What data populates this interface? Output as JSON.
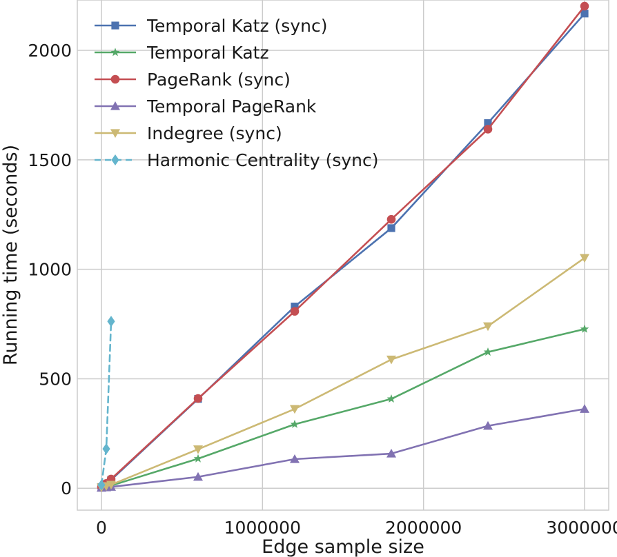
{
  "chart_data": {
    "type": "line",
    "title": "",
    "xlabel": "Edge sample size",
    "ylabel": "Running time (seconds)",
    "xlim": [
      -150000,
      3150000
    ],
    "ylim": [
      -100,
      2230
    ],
    "x_ticks": [
      0,
      1000000,
      2000000,
      3000000
    ],
    "x_tick_labels": [
      "0",
      "1000000",
      "2000000",
      "3000000"
    ],
    "y_ticks": [
      0,
      500,
      1000,
      1500,
      2000
    ],
    "y_tick_labels": [
      "0",
      "500",
      "1000",
      "1500",
      "2000"
    ],
    "grid": true,
    "legend_position": "top-left",
    "series": [
      {
        "name": "Temporal Katz (sync)",
        "color": "#4c72b0",
        "marker": "square",
        "dashed": false,
        "x": [
          0,
          30000,
          60000,
          600000,
          1200000,
          1800000,
          2400000,
          3000000
        ],
        "y": [
          5,
          18,
          38,
          408,
          830,
          1188,
          1668,
          2168
        ]
      },
      {
        "name": "Temporal Katz",
        "color": "#55a868",
        "marker": "star",
        "dashed": false,
        "x": [
          0,
          30000,
          60000,
          600000,
          1200000,
          1800000,
          2400000,
          3000000
        ],
        "y": [
          3,
          6,
          12,
          135,
          292,
          408,
          622,
          727
        ]
      },
      {
        "name": "PageRank (sync)",
        "color": "#c44e52",
        "marker": "circle",
        "dashed": false,
        "x": [
          0,
          30000,
          60000,
          600000,
          1200000,
          1800000,
          2400000,
          3000000
        ],
        "y": [
          5,
          22,
          42,
          410,
          808,
          1228,
          1640,
          2202
        ]
      },
      {
        "name": "Temporal PageRank",
        "color": "#8172b2",
        "marker": "triangle-up",
        "dashed": false,
        "x": [
          0,
          30000,
          60000,
          600000,
          1200000,
          1800000,
          2400000,
          3000000
        ],
        "y": [
          2,
          4,
          6,
          52,
          133,
          158,
          285,
          362
        ]
      },
      {
        "name": "Indegree (sync)",
        "color": "#ccb974",
        "marker": "triangle-down",
        "dashed": false,
        "x": [
          0,
          30000,
          60000,
          600000,
          1200000,
          1800000,
          2400000,
          3000000
        ],
        "y": [
          4,
          10,
          16,
          178,
          362,
          588,
          740,
          1052
        ]
      },
      {
        "name": "Harmonic Centrality (sync)",
        "color": "#64b5cd",
        "marker": "diamond",
        "dashed": true,
        "x": [
          0,
          30000,
          60000
        ],
        "y": [
          15,
          180,
          762
        ]
      }
    ]
  }
}
